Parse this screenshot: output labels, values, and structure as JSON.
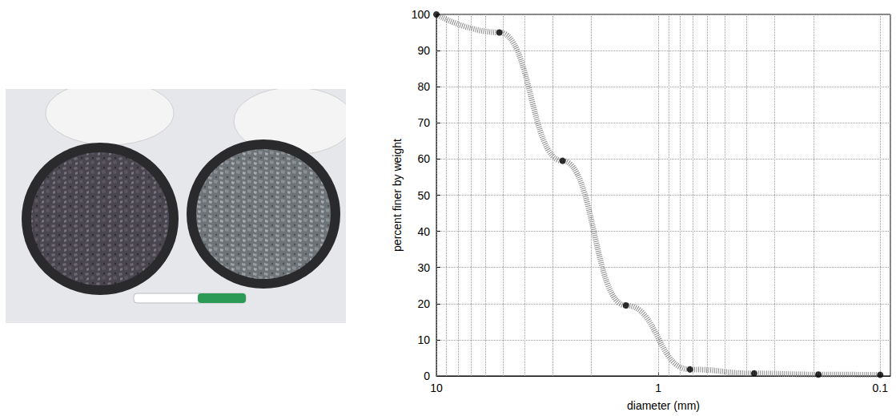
{
  "chart_data": {
    "type": "line",
    "x_label": "diameter (mm)",
    "y_label": "percent finer by weight",
    "log": "x",
    "grid": true,
    "xlim": [
      10,
      0.09
    ],
    "xticks": [
      10,
      1,
      0.1
    ],
    "ylim": [
      0,
      100
    ],
    "yticks": [
      0,
      10,
      20,
      30,
      40,
      50,
      60,
      70,
      80,
      90,
      100
    ],
    "x": [
      10,
      5.2,
      2.7,
      1.4,
      0.72,
      0.37,
      0.19,
      0.1
    ],
    "series": [
      {
        "type": "line",
        "color": "#8c8c8c",
        "line_style": "dashed",
        "marker": "none",
        "values": [
          100,
          95,
          59.5,
          19.5,
          1.8,
          0.7,
          0.4,
          0.3
        ]
      },
      {
        "type": "scatter",
        "color": "#000000",
        "marker": "circle",
        "values": [
          100,
          95,
          59.5,
          19.5,
          1.8,
          0.7,
          0.4,
          0.3
        ]
      }
    ]
  }
}
